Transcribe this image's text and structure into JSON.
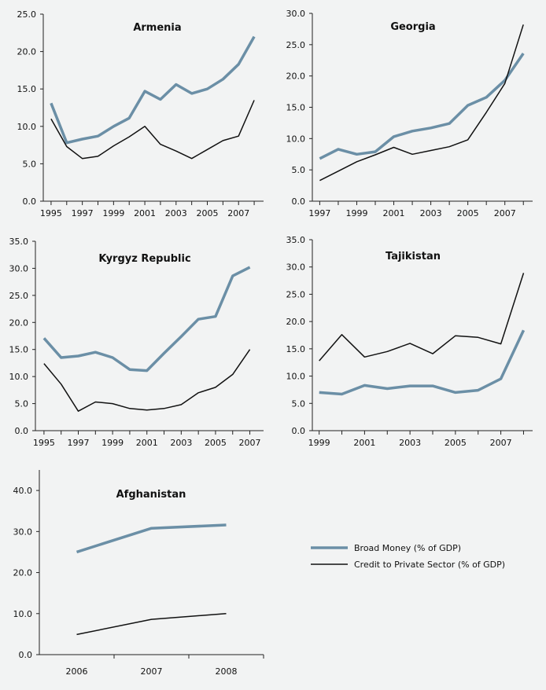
{
  "legend": {
    "broad_money": "Broad Money (% of GDP)",
    "credit": "Credit to Private Sector (% of GDP)"
  },
  "colors": {
    "broad_money": "#6b8fa6",
    "credit": "#111111"
  },
  "chart_data": [
    {
      "type": "line",
      "title": "Armenia",
      "x": [
        1995,
        1996,
        1997,
        1998,
        1999,
        2000,
        2001,
        2002,
        2003,
        2004,
        2005,
        2006,
        2007,
        2008
      ],
      "xticks": [
        1995,
        1997,
        1999,
        2001,
        2003,
        2005,
        2007
      ],
      "xlim": [
        1994.5,
        2008.6
      ],
      "yticks": [
        "0.0",
        "5.0",
        "10.0",
        "15.0",
        "20.0",
        "25.0"
      ],
      "ylim": [
        0,
        25
      ],
      "grid": false,
      "series": [
        {
          "name": "Broad Money (% of GDP)",
          "values": [
            13.1,
            7.8,
            8.3,
            8.7,
            10.0,
            11.1,
            14.7,
            13.6,
            15.6,
            14.4,
            15.0,
            16.3,
            18.3,
            22.0
          ]
        },
        {
          "name": "Credit to Private Sector (% of GDP)",
          "values": [
            11.0,
            7.3,
            5.7,
            6.0,
            7.4,
            8.6,
            10.0,
            7.6,
            6.7,
            5.7,
            6.9,
            8.1,
            8.7,
            13.5
          ]
        }
      ]
    },
    {
      "type": "line",
      "title": "Georgia",
      "x": [
        1997,
        1998,
        1999,
        2000,
        2001,
        2002,
        2003,
        2004,
        2005,
        2006,
        2007,
        2008
      ],
      "xticks": [
        1997,
        1999,
        2001,
        2003,
        2005,
        2007
      ],
      "xlim": [
        1996.6,
        2008.5
      ],
      "yticks": [
        "0.0",
        "5.0",
        "10.0",
        "15.0",
        "20.0",
        "25.0",
        "30.0"
      ],
      "ylim": [
        0,
        30
      ],
      "grid": false,
      "series": [
        {
          "name": "Broad Money (% of GDP)",
          "values": [
            6.8,
            8.3,
            7.5,
            7.9,
            10.3,
            11.2,
            11.7,
            12.4,
            15.3,
            16.6,
            19.3,
            23.6
          ]
        },
        {
          "name": "Credit to Private Sector (% of GDP)",
          "values": [
            3.3,
            4.8,
            6.3,
            7.4,
            8.6,
            7.5,
            8.1,
            8.7,
            9.8,
            14.2,
            18.8,
            28.2
          ]
        }
      ]
    },
    {
      "type": "line",
      "title": "Kyrgyz Republic",
      "x": [
        1995,
        1996,
        1997,
        1998,
        1999,
        2000,
        2001,
        2002,
        2003,
        2004,
        2005,
        2006,
        2007
      ],
      "xticks": [
        1995,
        1997,
        1999,
        2001,
        2003,
        2005,
        2007
      ],
      "xlim": [
        1994.5,
        2007.8
      ],
      "yticks": [
        "0.0",
        "5.0",
        "10.0",
        "15.0",
        "20.0",
        "25.0",
        "30.0",
        "35.0"
      ],
      "ylim": [
        0,
        35
      ],
      "grid": false,
      "series": [
        {
          "name": "Broad Money (% of GDP)",
          "values": [
            17.1,
            13.5,
            13.8,
            14.5,
            13.5,
            11.3,
            11.1,
            14.3,
            17.4,
            20.6,
            21.1,
            28.6,
            30.2
          ]
        },
        {
          "name": "Credit to Private Sector (% of GDP)",
          "values": [
            12.4,
            8.6,
            3.6,
            5.3,
            5.0,
            4.1,
            3.8,
            4.1,
            4.8,
            7.0,
            8.0,
            10.4,
            15.0
          ]
        }
      ]
    },
    {
      "type": "line",
      "title": "Tajikistan",
      "x": [
        1999,
        2000,
        2001,
        2002,
        2003,
        2004,
        2005,
        2006,
        2007,
        2008
      ],
      "xticks": [
        1999,
        2001,
        2003,
        2005,
        2007
      ],
      "xlim": [
        1998.7,
        2008.4
      ],
      "yticks": [
        "0.0",
        "5.0",
        "10.0",
        "15.0",
        "20.0",
        "25.0",
        "30.0",
        "35.0"
      ],
      "ylim": [
        0,
        35
      ],
      "grid": false,
      "series": [
        {
          "name": "Broad Money (% of GDP)",
          "values": [
            7.0,
            6.7,
            8.3,
            7.7,
            8.2,
            8.2,
            7.0,
            7.4,
            9.5,
            18.4
          ]
        },
        {
          "name": "Credit to Private Sector (% of GDP)",
          "values": [
            12.8,
            17.6,
            13.5,
            14.5,
            16.0,
            14.1,
            17.4,
            17.1,
            15.9,
            28.9
          ]
        }
      ]
    },
    {
      "type": "line",
      "title": "Afghanistan",
      "x": [
        2006,
        2007,
        2008
      ],
      "xticks": [
        2006,
        2007,
        2008
      ],
      "xlim": [
        2005.5,
        2008.5
      ],
      "yticks": [
        "0.0",
        "10.0",
        "20.0",
        "30.0",
        "40.0"
      ],
      "ylim": [
        0,
        45
      ],
      "grid": false,
      "series": [
        {
          "name": "Broad Money (% of GDP)",
          "values": [
            25.0,
            30.8,
            31.6
          ]
        },
        {
          "name": "Credit to Private Sector (% of GDP)",
          "values": [
            4.9,
            8.6,
            10.0
          ]
        }
      ]
    }
  ]
}
